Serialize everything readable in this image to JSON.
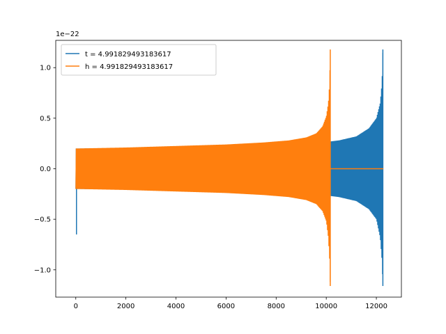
{
  "chart_data": {
    "type": "line",
    "title": "",
    "xlabel": "",
    "ylabel": "",
    "y_scale_label": "1e−22",
    "xlim": [
      -800,
      13000
    ],
    "ylim": [
      -1.27,
      1.27
    ],
    "x_ticks": [
      0,
      2000,
      4000,
      6000,
      8000,
      10000,
      12000
    ],
    "x_tick_labels": [
      "0",
      "2000",
      "4000",
      "6000",
      "8000",
      "10000",
      "12000"
    ],
    "y_ticks": [
      -1.0,
      -0.5,
      0.0,
      0.5,
      1.0
    ],
    "y_tick_labels": [
      "−1.0",
      "−0.5",
      "0.0",
      "0.5",
      "1.0"
    ],
    "grid": false,
    "legend_position": "top-left",
    "series": [
      {
        "name": "t = 4.991829493183617",
        "color": "#1f77b4",
        "envelope": {
          "x": [
            0,
            2000,
            4000,
            6000,
            8000,
            9500,
            10500,
            11200,
            11700,
            12000,
            12150,
            12220,
            12260
          ],
          "upper": [
            0.2,
            0.205,
            0.21,
            0.22,
            0.235,
            0.25,
            0.28,
            0.32,
            0.4,
            0.5,
            0.65,
            0.85,
            1.18
          ],
          "lower": [
            -0.2,
            -0.205,
            -0.21,
            -0.22,
            -0.235,
            -0.25,
            -0.28,
            -0.32,
            -0.4,
            -0.5,
            -0.68,
            -0.9,
            -1.16
          ]
        },
        "start_spike": {
          "x": 0,
          "min": -0.65,
          "max": 0.14
        },
        "end_x": 12280
      },
      {
        "name": "h = 4.991829493183617",
        "color": "#ff7f0e",
        "envelope": {
          "x": [
            0,
            2000,
            4000,
            6000,
            7500,
            8500,
            9200,
            9600,
            9850,
            10000,
            10080,
            10130,
            10160
          ],
          "upper": [
            0.2,
            0.21,
            0.225,
            0.24,
            0.26,
            0.28,
            0.31,
            0.35,
            0.42,
            0.52,
            0.65,
            0.85,
            1.18
          ],
          "lower": [
            -0.2,
            -0.21,
            -0.225,
            -0.24,
            -0.26,
            -0.28,
            -0.31,
            -0.35,
            -0.42,
            -0.52,
            -0.68,
            -0.9,
            -1.16
          ]
        },
        "flat_after": {
          "from": 10170,
          "to": 12280,
          "value": 0.0
        }
      }
    ]
  }
}
